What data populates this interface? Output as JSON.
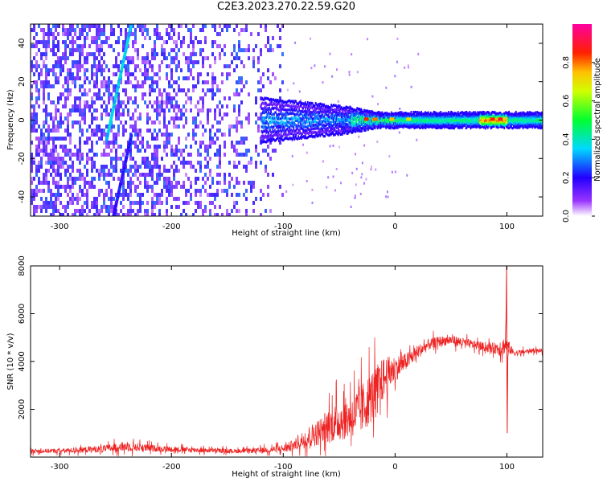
{
  "title": "C2E3.2023.270.22.59.G20",
  "chart_data": [
    {
      "type": "heatmap",
      "title": "C2E3.2023.270.22.59.G20",
      "xlabel": "Height of straight line (km)",
      "ylabel": "Frequency (Hz)",
      "xlim": [
        -326,
        132
      ],
      "ylim": [
        -50,
        50
      ],
      "xticks": [
        -300,
        -200,
        -100,
        0,
        100
      ],
      "yticks": [
        -40,
        -20,
        0,
        20,
        40
      ],
      "colorbar": {
        "label": "Normalized spectral amplitude",
        "range": [
          0,
          1
        ],
        "ticks": [
          0.0,
          0.2,
          0.4,
          0.6,
          0.8
        ],
        "tick_labels": [
          "0.0",
          "0.2",
          "0.4",
          "0.6",
          "0.8"
        ],
        "colors": [
          "#ffffff",
          "#7a00ff",
          "#0000ff",
          "#00e5ff",
          "#00ff00",
          "#ffff00",
          "#ff0000",
          "#ff0080"
        ]
      },
      "features": [
        {
          "name": "diagonal streak upper",
          "x": [
            -258,
            -236
          ],
          "y": [
            -10,
            50
          ],
          "amplitude": 0.3
        },
        {
          "name": "diagonal streak lower",
          "x": [
            -252,
            -236
          ],
          "y": [
            -50,
            -8
          ],
          "amplitude": 0.15
        },
        {
          "name": "central band",
          "x": [
            -120,
            132
          ],
          "y_center": 0,
          "amplitude_range": [
            0.3,
            0.9
          ]
        },
        {
          "name": "background noise",
          "x": [
            -326,
            -100
          ],
          "y": [
            -50,
            50
          ],
          "amplitude": 0.1
        }
      ]
    },
    {
      "type": "line",
      "xlabel": "Height of straight line (km)",
      "ylabel": "SNR (10 * v/v)",
      "xlim": [
        -326,
        132
      ],
      "ylim": [
        0,
        8000
      ],
      "xticks": [
        -300,
        -200,
        -100,
        0,
        100
      ],
      "yticks": [
        2000,
        4000,
        6000,
        8000
      ],
      "series": [
        {
          "name": "SNR",
          "color": "#ee2222",
          "x": [
            -326,
            -300,
            -280,
            -260,
            -240,
            -220,
            -200,
            -180,
            -160,
            -140,
            -120,
            -100,
            -90,
            -80,
            -70,
            -60,
            -50,
            -40,
            -30,
            -20,
            -10,
            0,
            10,
            20,
            30,
            40,
            50,
            60,
            70,
            80,
            90,
            95,
            100,
            105,
            110,
            120,
            132
          ],
          "values": [
            250,
            260,
            300,
            350,
            450,
            380,
            330,
            300,
            270,
            250,
            280,
            350,
            500,
            800,
            1000,
            1300,
            1500,
            1700,
            2000,
            2600,
            3300,
            3700,
            4000,
            4400,
            4700,
            4850,
            4900,
            4800,
            4700,
            4600,
            4550,
            4600,
            4700,
            4400,
            4350,
            4450,
            4450
          ],
          "noise_amplitude": [
            150,
            150,
            200,
            250,
            350,
            250,
            200,
            180,
            150,
            150,
            180,
            300,
            400,
            700,
            900,
            1200,
            1400,
            1500,
            1800,
            1800,
            1500,
            900,
            600,
            500,
            400,
            350,
            350,
            350,
            300,
            300,
            400,
            700,
            500,
            300,
            200,
            150,
            150
          ],
          "spikes": [
            {
              "x": 100,
              "max": 8000,
              "min": 1000
            }
          ]
        }
      ]
    }
  ]
}
